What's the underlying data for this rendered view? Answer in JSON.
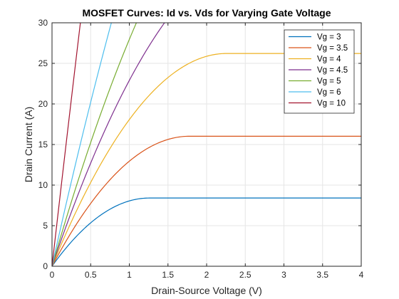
{
  "chart_data": {
    "type": "line",
    "title": "MOSFET Curves: Id vs. Vds for Varying Gate Voltage",
    "xlabel": "Drain-Source Voltage (V)",
    "ylabel": "Drain Current (A)",
    "xlim": [
      0,
      4
    ],
    "ylim": [
      0,
      30
    ],
    "xticks": [
      0,
      0.5,
      1,
      1.5,
      2,
      2.5,
      3,
      3.5,
      4
    ],
    "xtick_labels": [
      "0",
      "0.5",
      "1",
      "1.5",
      "2",
      "2.5",
      "3",
      "3.5",
      "4"
    ],
    "yticks": [
      0,
      5,
      10,
      15,
      20,
      25,
      30
    ],
    "ytick_labels": [
      "0",
      "5",
      "10",
      "15",
      "20",
      "25",
      "30"
    ],
    "grid": true,
    "legend_position": "top-right",
    "series": [
      {
        "name": "Vg = 3",
        "color": "#0072BD",
        "vov": 1.26,
        "k": 5.296
      },
      {
        "name": "Vg = 3.5",
        "color": "#D95319",
        "vov": 1.78,
        "k": 5.057
      },
      {
        "name": "Vg = 4",
        "color": "#EDB120",
        "vov": 2.26,
        "k": 5.133
      },
      {
        "name": "Vg = 4.5",
        "color": "#7E2F8E",
        "vov": 2.78,
        "k": 5.022
      },
      {
        "name": "Vg = 5",
        "color": "#77AC30",
        "vov": 3.26,
        "k": 5.063
      },
      {
        "name": "Vg = 6",
        "color": "#4DBEEE",
        "vov": 4.26,
        "k": 5.04
      },
      {
        "name": "Vg = 10",
        "color": "#A2142F",
        "vov": 8.26,
        "k": 5.06
      }
    ]
  }
}
